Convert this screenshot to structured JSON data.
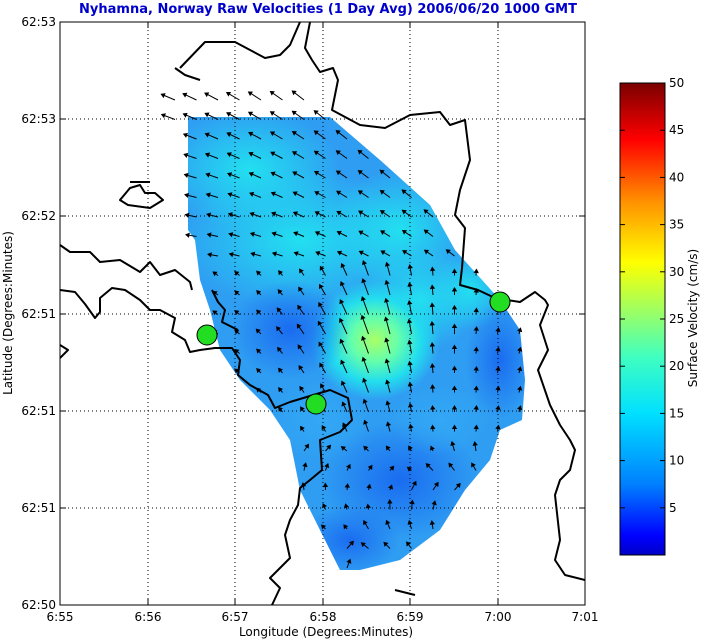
{
  "chart_data": {
    "type": "heatmap",
    "title": "Nyhamna, Norway Raw Velocities (1 Day Avg) 2006/06/20 1000 GMT",
    "xlabel": "Longitude (Degrees:Minutes)",
    "ylabel": "Latitude (Degrees:Minutes)",
    "x_ticks": [
      "6:55",
      "6:56",
      "6:57",
      "6:58",
      "6:59",
      "7:00",
      "7:01"
    ],
    "y_ticks": [
      "62:50",
      "62:51",
      "62:51",
      "62:51",
      "62:52",
      "62:53",
      "62:53"
    ],
    "grid": true,
    "colorbar": {
      "label": "Surface Velocity (cm/s)",
      "ticks": [
        "5",
        "10",
        "15",
        "20",
        "25",
        "30",
        "35",
        "40",
        "45",
        "50"
      ],
      "range": [
        0,
        50
      ],
      "colormap": "jet"
    },
    "stations": [
      {
        "lon_min": 56.68,
        "lat_step": 2.77,
        "color": "#22dd22"
      },
      {
        "lon_min": 57.92,
        "lat_step": 2.08,
        "color": "#22dd22"
      },
      {
        "lon_min": 60.0,
        "lat_step": 3.12,
        "color": "#22dd22"
      }
    ],
    "velocity_field": {
      "typical_speed_range_cm_s": [
        3,
        18
      ],
      "peak_speed_cm_s": 18,
      "dominant_direction": "north-northwest"
    }
  }
}
